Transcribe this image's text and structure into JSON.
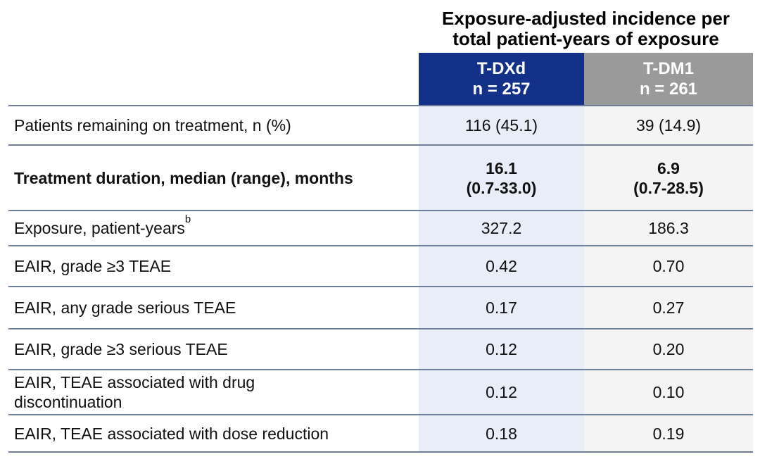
{
  "colors": {
    "tdxd_header_bg": "#133189",
    "tdm1_header_bg": "#9A9A9A",
    "tdxd_column_bg": "#E9EDF8",
    "tdm1_column_bg": "#F4F4F5",
    "separator_line": "#6F7E99"
  },
  "table": {
    "title_line1": "Exposure-adjusted incidence per",
    "title_line2": "total patient-years of exposure",
    "columns": [
      {
        "name": "T-DXd",
        "n_label": "n = 257"
      },
      {
        "name": "T-DM1",
        "n_label": "n = 261"
      }
    ],
    "rows": [
      {
        "label": "Patients remaining on treatment, n (%)",
        "tdxd": "116 (45.1)",
        "tdm1": "39 (14.9)"
      },
      {
        "label": "Treatment duration, median (range), months",
        "tdxd": "16.1",
        "tdxd2": "(0.7-33.0)",
        "tdm1": "6.9",
        "tdm12": "(0.7-28.5)"
      },
      {
        "label": "Exposure, patient-years",
        "label_sup": "b",
        "tdxd": "327.2",
        "tdm1": "186.3"
      },
      {
        "label": "EAIR, grade ≥3 TEAE",
        "tdxd": "0.42",
        "tdm1": "0.70"
      },
      {
        "label": "EAIR, any grade serious TEAE",
        "tdxd": "0.17",
        "tdm1": "0.27"
      },
      {
        "label": "EAIR, grade ≥3 serious TEAE",
        "tdxd": "0.12",
        "tdm1": "0.20"
      },
      {
        "label": "EAIR, TEAE associated with drug",
        "label2": "discontinuation",
        "tdxd": "0.12",
        "tdm1": "0.10"
      },
      {
        "label": "EAIR, TEAE associated with dose reduction",
        "tdxd": "0.18",
        "tdm1": "0.19"
      }
    ]
  },
  "chart_data": {
    "type": "table",
    "title": "Exposure-adjusted incidence per total patient-years of exposure",
    "columns": [
      "",
      "T-DXd n = 257",
      "T-DM1 n = 261"
    ],
    "rows": [
      [
        "Patients remaining on treatment, n (%)",
        "116 (45.1)",
        "39 (14.9)"
      ],
      [
        "Treatment duration, median (range), months",
        "16.1 (0.7-33.0)",
        "6.9 (0.7-28.5)"
      ],
      [
        "Exposure, patient-yearsᵇ",
        "327.2",
        "186.3"
      ],
      [
        "EAIR, grade ≥3 TEAE",
        "0.42",
        "0.70"
      ],
      [
        "EAIR, any grade serious TEAE",
        "0.17",
        "0.27"
      ],
      [
        "EAIR, grade ≥3 serious TEAE",
        "0.12",
        "0.20"
      ],
      [
        "EAIR, TEAE associated with drug discontinuation",
        "0.12",
        "0.10"
      ],
      [
        "EAIR, TEAE associated with dose reduction",
        "0.18",
        "0.19"
      ]
    ]
  }
}
